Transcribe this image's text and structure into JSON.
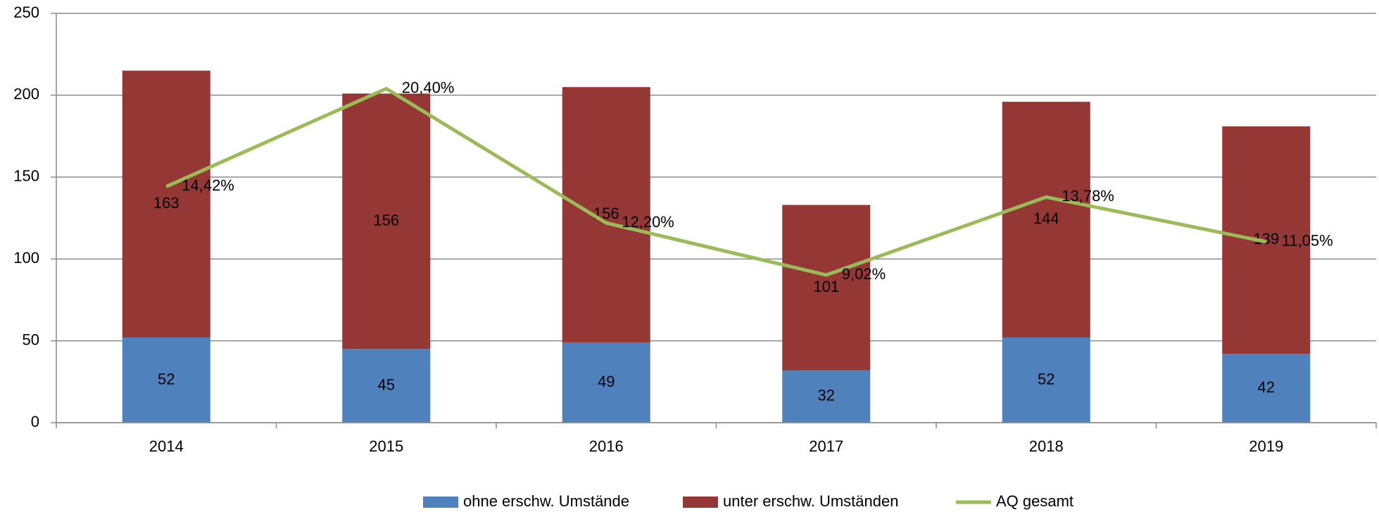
{
  "chart_data": {
    "type": "bar",
    "stacked": true,
    "categories": [
      "2014",
      "2015",
      "2016",
      "2017",
      "2018",
      "2019"
    ],
    "series": [
      {
        "name": "ohne erschw. Umstände",
        "color": "#4f81bd",
        "values": [
          52,
          45,
          49,
          32,
          52,
          42
        ]
      },
      {
        "name": "unter erschw. Umständen",
        "color": "#953735",
        "values": [
          163,
          156,
          156,
          101,
          144,
          139
        ]
      },
      {
        "name": "AQ gesamt",
        "color": "#9bbb59",
        "type": "line",
        "axis": "y2",
        "values": [
          14.42,
          20.4,
          12.2,
          9.02,
          13.78,
          11.05
        ],
        "value_labels": [
          "14,42%",
          "20,40%",
          "12,20%",
          "9,02%",
          "13,78%",
          "11,05%"
        ]
      }
    ],
    "ylim": [
      0,
      250
    ],
    "yticks": [
      0,
      50,
      100,
      150,
      200,
      250
    ],
    "y2lim": [
      0,
      25
    ],
    "grid": true,
    "legend": "bottom"
  }
}
